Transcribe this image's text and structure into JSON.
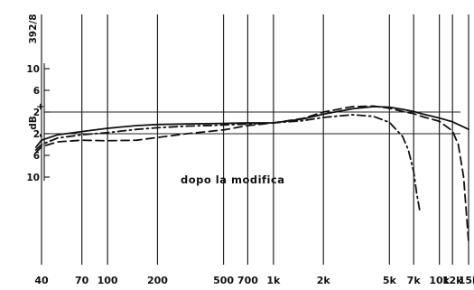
{
  "chart_data": {
    "type": "line",
    "x_scale": "log",
    "annotation": "dopo la modifica",
    "corner_label": "392/8",
    "y_axis_label": "dB",
    "y_sign_plus": "+",
    "y_sign_minus": "-",
    "x_ticks": [
      {
        "value": 40,
        "label": "40"
      },
      {
        "value": 70,
        "label": "70"
      },
      {
        "value": 100,
        "label": "100"
      },
      {
        "value": 200,
        "label": "200"
      },
      {
        "value": 500,
        "label": "500"
      },
      {
        "value": 700,
        "label": "700"
      },
      {
        "value": 1000,
        "label": "1k"
      },
      {
        "value": 2000,
        "label": "2k"
      },
      {
        "value": 5000,
        "label": "5k"
      },
      {
        "value": 7000,
        "label": "7k"
      },
      {
        "value": 10000,
        "label": "10k"
      },
      {
        "value": 12000,
        "label": "12k"
      },
      {
        "value": 15000,
        "label": "15k"
      }
    ],
    "y_ticks": [
      {
        "value": 10,
        "label": "10"
      },
      {
        "value": 6,
        "label": "6"
      },
      {
        "value": 2,
        "label": "2"
      },
      {
        "value": -2,
        "label": "2"
      },
      {
        "value": -6,
        "label": "6"
      },
      {
        "value": -10,
        "label": "10"
      }
    ],
    "reference_lines": [
      2,
      -2
    ],
    "xlim": [
      37,
      16000
    ],
    "ylim": [
      -32,
      16
    ],
    "series": [
      {
        "style": "solid",
        "points": [
          [
            37,
            -4.5
          ],
          [
            40,
            -3.2
          ],
          [
            50,
            -2.2
          ],
          [
            70,
            -1.6
          ],
          [
            100,
            -1
          ],
          [
            150,
            -0.5
          ],
          [
            200,
            -0.3
          ],
          [
            300,
            -0.2
          ],
          [
            500,
            -0.1
          ],
          [
            700,
            0
          ],
          [
            1000,
            0
          ],
          [
            1500,
            0.7
          ],
          [
            2000,
            1.6
          ],
          [
            3000,
            2.6
          ],
          [
            4000,
            3
          ],
          [
            5000,
            2.9
          ],
          [
            6000,
            2.5
          ],
          [
            7000,
            2.1
          ],
          [
            8000,
            1.6
          ],
          [
            10000,
            0.9
          ],
          [
            12000,
            0.2
          ],
          [
            15000,
            -1.2
          ]
        ]
      },
      {
        "style": "dashed",
        "points": [
          [
            37,
            -5.5
          ],
          [
            40,
            -4.4
          ],
          [
            50,
            -3.5
          ],
          [
            70,
            -3.2
          ],
          [
            100,
            -3.3
          ],
          [
            150,
            -3.2
          ],
          [
            200,
            -2.7
          ],
          [
            300,
            -2
          ],
          [
            500,
            -1.3
          ],
          [
            700,
            -0.5
          ],
          [
            1000,
            0
          ],
          [
            1500,
            0.8
          ],
          [
            2000,
            2
          ],
          [
            3000,
            3
          ],
          [
            4000,
            3.1
          ],
          [
            5000,
            2.7
          ],
          [
            6000,
            2.1
          ],
          [
            7000,
            1.7
          ],
          [
            8000,
            1.1
          ],
          [
            10000,
            0.3
          ],
          [
            12000,
            -1.5
          ],
          [
            13000,
            -4
          ],
          [
            14000,
            -10
          ],
          [
            15000,
            -22
          ]
        ]
      },
      {
        "style": "dash-dot",
        "points": [
          [
            37,
            -5
          ],
          [
            40,
            -4
          ],
          [
            50,
            -2.8
          ],
          [
            70,
            -2.2
          ],
          [
            100,
            -1.8
          ],
          [
            150,
            -1.2
          ],
          [
            200,
            -0.9
          ],
          [
            300,
            -0.6
          ],
          [
            500,
            -0.4
          ],
          [
            700,
            -0.2
          ],
          [
            1000,
            0
          ],
          [
            1500,
            0.4
          ],
          [
            2000,
            1
          ],
          [
            3000,
            1.5
          ],
          [
            4000,
            1.2
          ],
          [
            5000,
            0.1
          ],
          [
            6000,
            -2.5
          ],
          [
            6500,
            -5
          ],
          [
            7000,
            -9
          ],
          [
            7300,
            -13
          ],
          [
            7600,
            -16
          ]
        ]
      }
    ]
  }
}
